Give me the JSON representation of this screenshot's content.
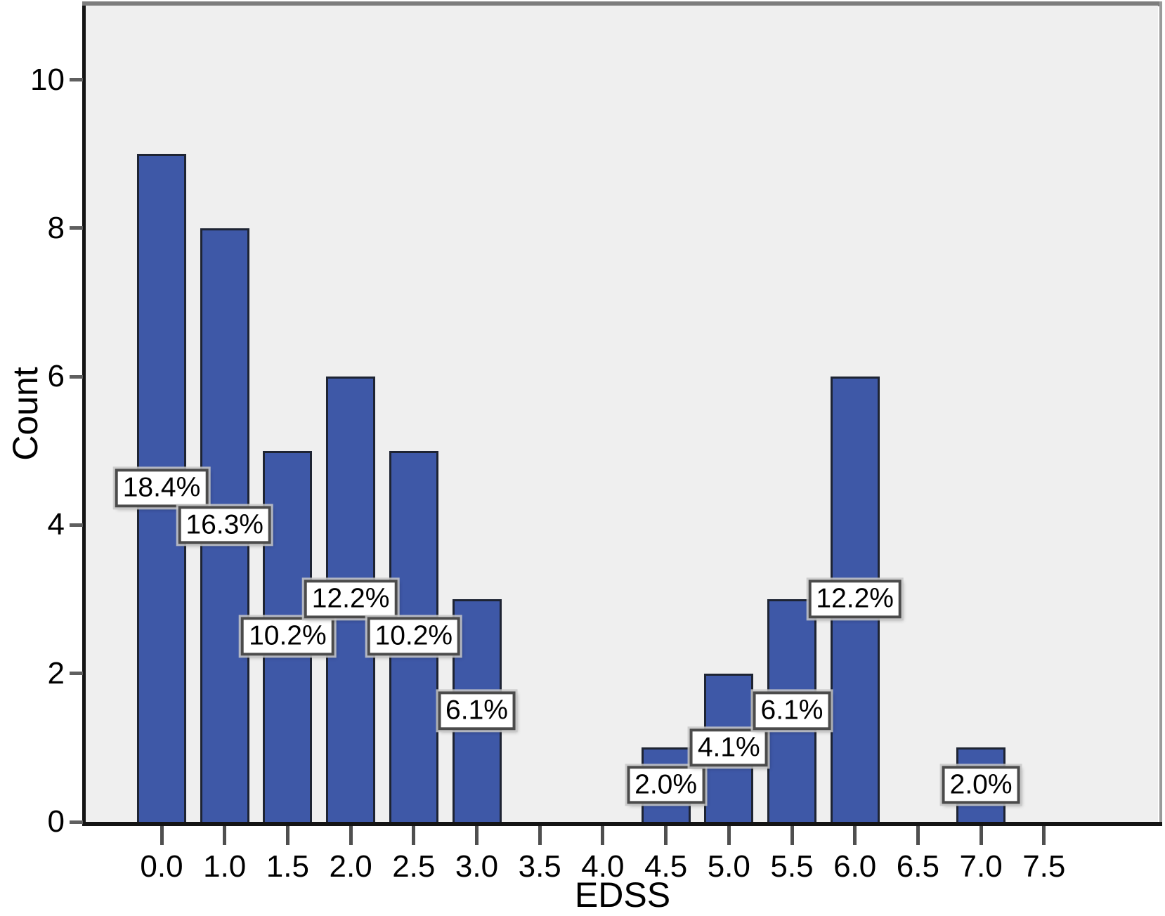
{
  "chart_data": {
    "type": "bar",
    "title": "",
    "xlabel": "EDSS",
    "ylabel": "Count",
    "categories": [
      "0.0",
      "1.0",
      "1.5",
      "2.0",
      "2.5",
      "3.0",
      "3.5",
      "4.0",
      "4.5",
      "5.0",
      "5.5",
      "6.0",
      "6.5",
      "7.0",
      "7.5"
    ],
    "values": [
      9,
      8,
      5,
      6,
      5,
      3,
      0,
      0,
      1,
      2,
      3,
      6,
      0,
      1,
      0
    ],
    "percent_labels": [
      "18.4%",
      "16.3%",
      "10.2%",
      "12.2%",
      "10.2%",
      "6.1%",
      "",
      "",
      "2.0%",
      "4.1%",
      "6.1%",
      "12.2%",
      "",
      "2.0%",
      ""
    ],
    "yticks": [
      0,
      2,
      4,
      6,
      8,
      10
    ],
    "ylim": [
      0,
      11
    ],
    "grid": "off",
    "legend": "none",
    "colors": {
      "bar_fill": "#3E58A7",
      "bar_border": "#1E2433",
      "plot_bg": "#EFEFEF",
      "axis_line": "#141414",
      "frame_top": "#7D7D7D",
      "frame_right": "#9A9A9A",
      "label_box_bg": "#FFFFFF",
      "label_box_border": "#4B4B4B"
    }
  }
}
